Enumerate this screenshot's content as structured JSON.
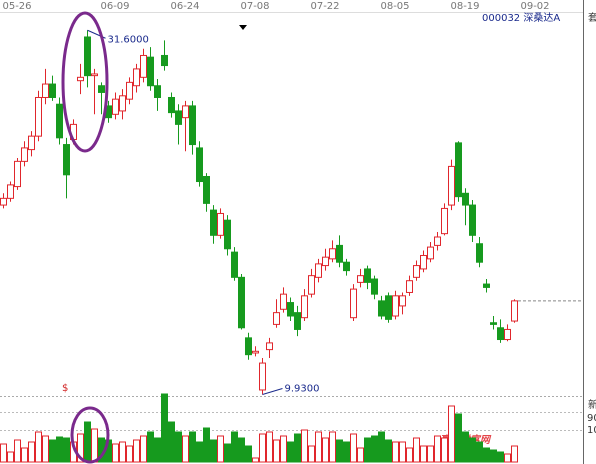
{
  "chart_data": {
    "type": "candlestick",
    "stock_label": "000032 深桑达A",
    "categories": [
      null,
      null,
      "05-26",
      null,
      null,
      null,
      null,
      null,
      null,
      null,
      null,
      null,
      null,
      null,
      null,
      null,
      "06-09",
      null,
      null,
      null,
      null,
      null,
      null,
      null,
      null,
      null,
      "06-24",
      null,
      null,
      null,
      null,
      null,
      null,
      null,
      null,
      null,
      "07-08",
      null,
      null,
      null,
      null,
      null,
      null,
      null,
      null,
      null,
      "07-22",
      null,
      null,
      null,
      null,
      null,
      null,
      null,
      null,
      null,
      "08-05",
      null,
      null,
      null,
      null,
      null,
      null,
      null,
      null,
      null,
      "08-19",
      null,
      null,
      null,
      null,
      null,
      null,
      null,
      null,
      null,
      "09-02"
    ],
    "open": [
      21.2,
      21.6,
      22.3,
      23.8,
      24.5,
      25.3,
      27.6,
      28.4,
      27.2,
      24.8,
      25.1,
      28.6,
      31.2,
      28.9,
      28.3,
      27.1,
      26.6,
      26.8,
      27.5,
      28.3,
      28.8,
      30.0,
      28.3,
      30.1,
      27.6,
      26.8,
      26.4,
      27.1,
      24.6,
      22.9,
      20.9,
      19.4,
      20.3,
      18.4,
      16.9,
      13.3,
      12.4,
      10.2,
      12.6,
      14.1,
      15.0,
      15.4,
      14.8,
      14.5,
      15.9,
      16.9,
      17.6,
      18.0,
      18.8,
      17.8,
      14.5,
      16.6,
      17.4,
      16.8,
      15.5,
      15.8,
      14.6,
      15.2,
      16.0,
      16.9,
      17.4,
      18.0,
      18.8,
      19.5,
      21.2,
      24.9,
      21.9,
      21.2,
      18.9,
      16.5,
      14.2,
      13.9,
      13.2,
      14.3,
      null,
      null,
      null
    ],
    "close": [
      21.6,
      22.4,
      23.8,
      24.6,
      25.3,
      27.6,
      28.4,
      27.6,
      25.2,
      23.0,
      26.0,
      28.8,
      28.9,
      29.0,
      27.9,
      26.4,
      27.5,
      27.7,
      28.5,
      29.3,
      30.1,
      28.3,
      27.6,
      29.5,
      26.7,
      26.0,
      27.1,
      24.8,
      22.6,
      21.3,
      19.4,
      20.7,
      18.6,
      16.9,
      13.9,
      12.3,
      12.5,
      11.8,
      13.0,
      14.8,
      15.9,
      14.6,
      13.8,
      15.8,
      17.0,
      17.7,
      18.1,
      18.6,
      17.8,
      17.3,
      16.2,
      17.0,
      16.6,
      15.9,
      14.6,
      14.4,
      15.8,
      15.8,
      16.7,
      17.6,
      18.2,
      18.7,
      19.3,
      21.0,
      23.5,
      21.7,
      21.2,
      19.4,
      17.8,
      16.3,
      14.1,
      13.2,
      13.8,
      15.5,
      null,
      null,
      null
    ],
    "high": [
      21.9,
      22.6,
      24.0,
      25.0,
      25.6,
      28.0,
      29.3,
      28.9,
      27.6,
      25.2,
      26.3,
      29.6,
      31.6,
      29.3,
      28.5,
      27.4,
      27.9,
      28.1,
      28.8,
      29.6,
      30.5,
      30.6,
      28.7,
      31.0,
      27.9,
      27.2,
      27.4,
      27.4,
      25.0,
      23.1,
      21.2,
      21.0,
      20.6,
      18.7,
      17.1,
      13.6,
      12.8,
      12.1,
      13.3,
      15.6,
      16.3,
      15.7,
      15.2,
      16.2,
      17.4,
      18.0,
      18.6,
      19.1,
      19.4,
      18.0,
      16.5,
      17.4,
      17.6,
      17.0,
      15.8,
      16.0,
      16.1,
      16.0,
      17.0,
      17.9,
      18.5,
      19.0,
      19.6,
      21.3,
      23.9,
      25.0,
      22.2,
      21.5,
      19.3,
      16.8,
      14.6,
      14.4,
      14.1,
      15.6,
      null,
      null,
      null
    ],
    "low": [
      21.0,
      21.4,
      22.1,
      23.5,
      24.1,
      25.0,
      27.2,
      27.4,
      24.8,
      21.6,
      24.8,
      27.8,
      28.2,
      26.6,
      26.6,
      26.1,
      26.3,
      26.3,
      27.2,
      27.9,
      28.5,
      28.0,
      26.8,
      29.2,
      26.4,
      24.8,
      24.4,
      24.2,
      22.3,
      20.8,
      18.9,
      19.2,
      18.2,
      16.7,
      13.8,
      12.0,
      12.2,
      9.93,
      12.1,
      13.9,
      14.8,
      14.3,
      13.4,
      14.3,
      15.7,
      16.6,
      17.3,
      17.8,
      17.5,
      17.0,
      14.3,
      16.3,
      16.2,
      15.6,
      14.4,
      14.2,
      14.4,
      14.7,
      15.8,
      16.7,
      17.2,
      17.8,
      18.5,
      19.4,
      20.9,
      21.4,
      20.0,
      19.0,
      17.5,
      16.0,
      13.8,
      13.0,
      13.1,
      14.2,
      null,
      null,
      null
    ],
    "volume": [
      18,
      10,
      22,
      14,
      20,
      30,
      26,
      22,
      25,
      24,
      20,
      28,
      40,
      33,
      24,
      22,
      18,
      20,
      16,
      22,
      26,
      30,
      24,
      68,
      40,
      30,
      26,
      30,
      20,
      34,
      22,
      26,
      18,
      30,
      24,
      16,
      4,
      28,
      30,
      22,
      26,
      20,
      28,
      32,
      16,
      30,
      24,
      30,
      22,
      20,
      28,
      14,
      24,
      26,
      30,
      22,
      20,
      20,
      14,
      24,
      16,
      16,
      26,
      24,
      56,
      48,
      30,
      24,
      20,
      14,
      12,
      10,
      8,
      16,
      null,
      null,
      null
    ],
    "ylim": [
      9.9,
      33.4
    ],
    "vlim": [
      0,
      70
    ],
    "up_color": "#e0262c",
    "down_color": "#169a1e",
    "annotations": [
      "31.6000",
      "9.9300"
    ],
    "volume_marker": "$",
    "side_labels": [
      "套",
      "新",
      "90",
      "10"
    ],
    "watermark": "赢家财富网"
  }
}
